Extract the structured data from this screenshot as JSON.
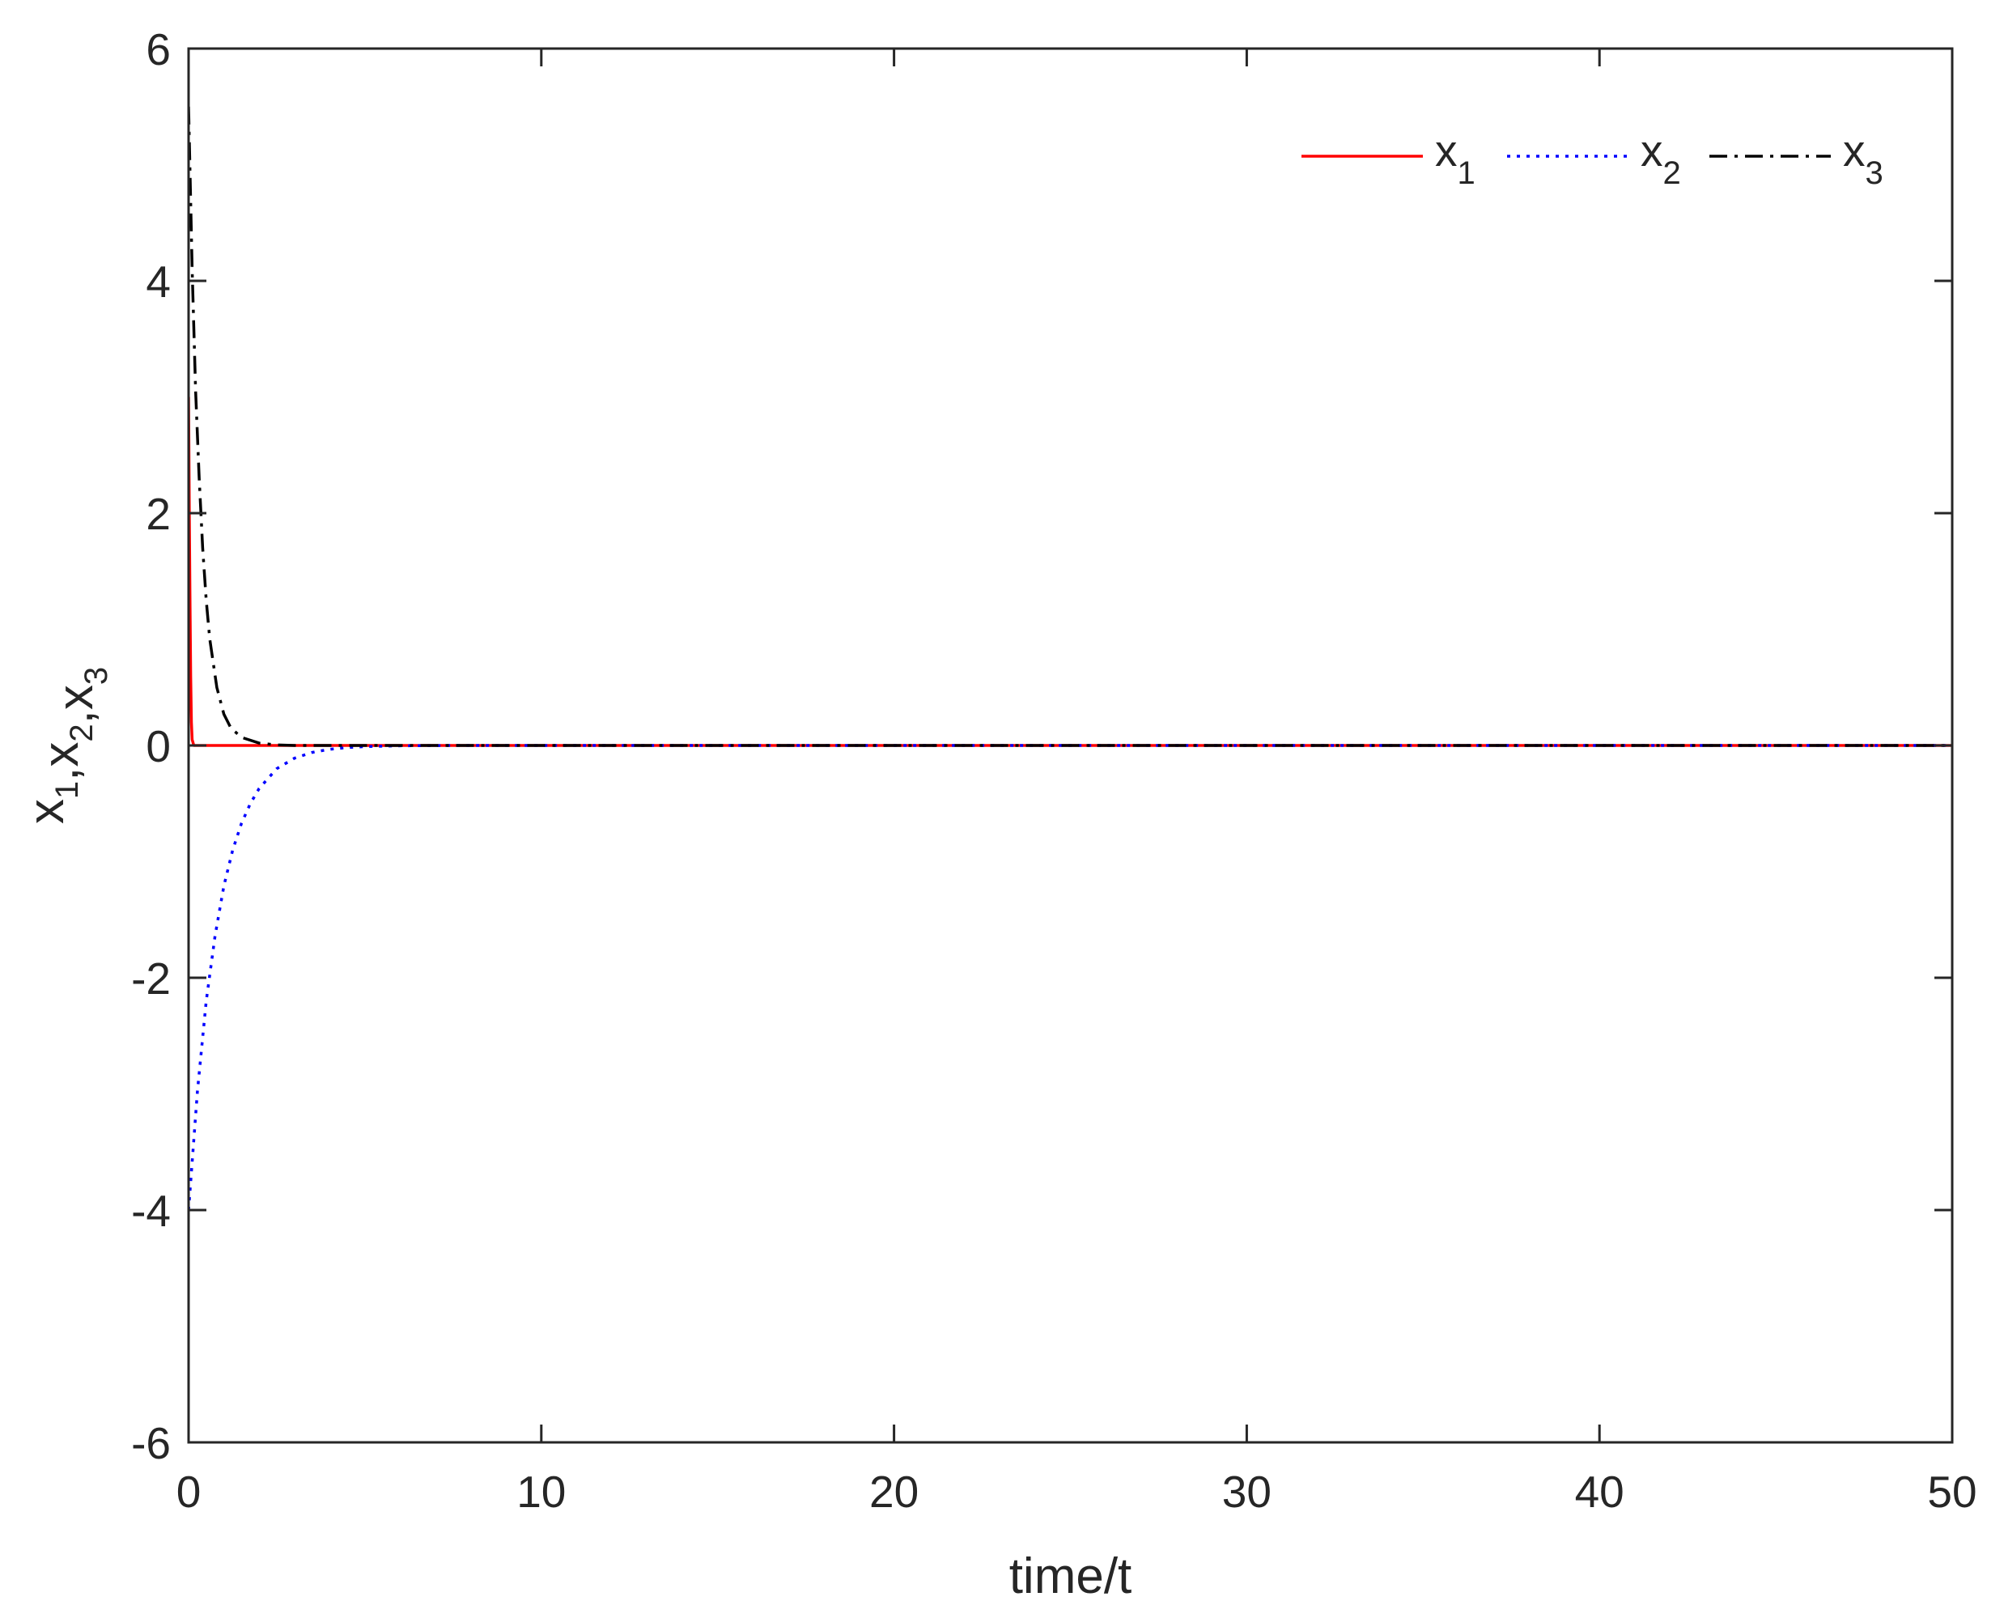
{
  "chart_data": {
    "type": "line",
    "title": "",
    "xlabel": "time/t",
    "ylabel_parts": [
      {
        "base": "x",
        "sub": "1"
      },
      {
        "sep": ","
      },
      {
        "base": "x",
        "sub": "2"
      },
      {
        "sep": ","
      },
      {
        "base": "x",
        "sub": "3"
      }
    ],
    "xlim": [
      0,
      50
    ],
    "ylim": [
      -6,
      6
    ],
    "xticks": [
      0,
      10,
      20,
      30,
      40,
      50
    ],
    "yticks": [
      -6,
      -4,
      -2,
      0,
      2,
      4,
      6
    ],
    "xtick_labels": [
      "0",
      "10",
      "20",
      "30",
      "40",
      "50"
    ],
    "ytick_labels": [
      "-6",
      "-4",
      "-2",
      "0",
      "2",
      "4",
      "6"
    ],
    "grid": false,
    "legend_position": "top-right",
    "series": [
      {
        "name": "x1",
        "legend_base": "x",
        "legend_sub": "1",
        "color": "#ff0000",
        "dash": "solid",
        "x": [
          0,
          0.02,
          0.04,
          0.06,
          0.08,
          0.1,
          0.15,
          0.2,
          0.5,
          1,
          2,
          5,
          10,
          20,
          30,
          40,
          50
        ],
        "y": [
          3.0,
          2.0,
          1.3,
          0.6,
          0.2,
          0.05,
          0.0,
          0.0,
          0.0,
          0.0,
          0.0,
          0.0,
          0.0,
          0.0,
          0.0,
          0.0,
          0.0
        ]
      },
      {
        "name": "x2",
        "legend_base": "x",
        "legend_sub": "2",
        "color": "#0000ff",
        "dash": "dotted",
        "x": [
          0,
          0.25,
          0.5,
          0.75,
          1,
          1.25,
          1.5,
          1.75,
          2,
          2.5,
          3,
          3.5,
          4,
          4.5,
          5,
          5.5,
          6,
          7,
          8,
          10,
          20,
          30,
          40,
          50
        ],
        "y": [
          -4.0,
          -2.98,
          -2.2,
          -1.64,
          -1.21,
          -0.9,
          -0.67,
          -0.5,
          -0.37,
          -0.2,
          -0.11,
          -0.06,
          -0.033,
          -0.018,
          -0.01,
          -0.006,
          -0.003,
          -0.001,
          0.0,
          0.0,
          0.0,
          0.0,
          0.0,
          0.0
        ]
      },
      {
        "name": "x3",
        "legend_base": "x",
        "legend_sub": "3",
        "color": "#000000",
        "dash": "dashdot",
        "x": [
          0,
          0.1,
          0.2,
          0.3,
          0.4,
          0.5,
          0.6,
          0.8,
          1,
          1.2,
          1.5,
          2,
          2.5,
          3,
          4,
          5,
          10,
          20,
          30,
          40,
          50
        ],
        "y": [
          5.5,
          4.1,
          3.05,
          2.3,
          1.7,
          1.25,
          0.92,
          0.5,
          0.27,
          0.15,
          0.07,
          0.02,
          0.005,
          0.0,
          0.0,
          0.0,
          0.0,
          0.0,
          0.0,
          0.0,
          0.0
        ]
      }
    ]
  }
}
